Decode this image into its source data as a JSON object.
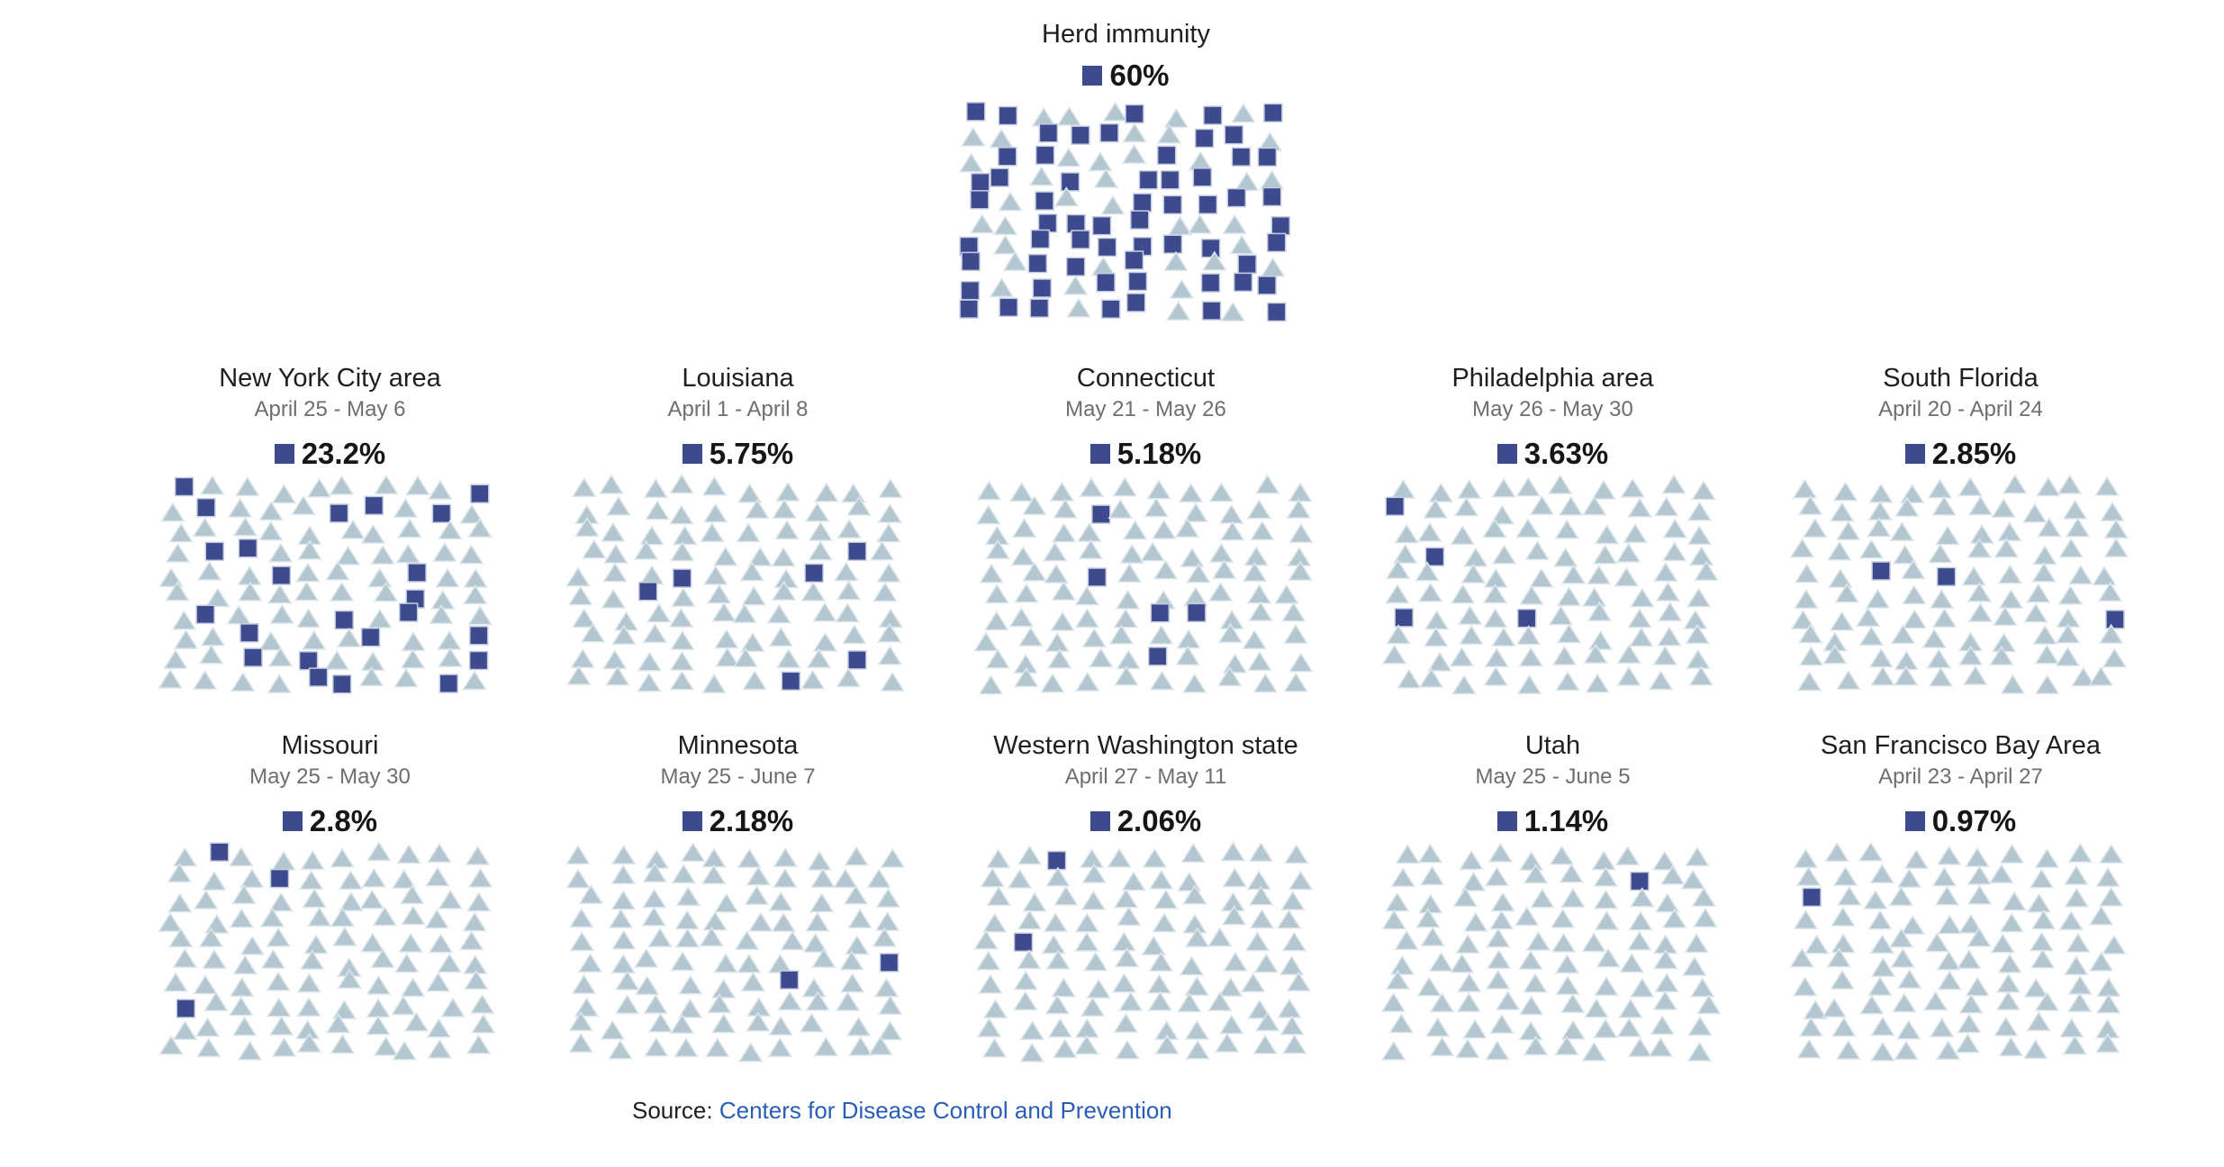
{
  "colors": {
    "square_fill": "#3e4a8e",
    "square_stroke": "#c7cde0",
    "triangle_fill": "#b4c6cf",
    "triangle_stroke": "#dde7ec",
    "title_text": "#1f1f1f",
    "subtitle_text": "#6e6e6e",
    "value_text": "#161616",
    "link_blue": "#2a5db5"
  },
  "herd": {
    "title": "Herd immunity",
    "value_label": "60%",
    "value_pct": 60,
    "icons_total": 100,
    "icons_filled": 60
  },
  "regions": [
    {
      "title": "New York City area",
      "date_range": "April 25 - May 6",
      "value_label": "23.2%",
      "value_pct": 23.2,
      "icons_total": 100,
      "icons_filled": 23,
      "square_cells": [
        0,
        9,
        11,
        15,
        16,
        18,
        31,
        32,
        43,
        47,
        57,
        61,
        65,
        67,
        72,
        76,
        79,
        82,
        84,
        89,
        94,
        95,
        98
      ]
    },
    {
      "title": "Louisiana",
      "date_range": "April 1 - April 8",
      "value_label": "5.75%",
      "value_pct": 5.75,
      "icons_total": 100,
      "icons_filled": 6,
      "square_cells": [
        38,
        43,
        47,
        52,
        88,
        96
      ]
    },
    {
      "title": "Connecticut",
      "date_range": "May 21 - May 26",
      "value_label": "5.18%",
      "value_pct": 5.18,
      "icons_total": 100,
      "icons_filled": 5,
      "square_cells": [
        13,
        43,
        65,
        66,
        85
      ]
    },
    {
      "title": "Philadelphia area",
      "date_range": "May 26 - May 30",
      "value_label": "3.63%",
      "value_pct": 3.63,
      "icons_total": 100,
      "icons_filled": 4,
      "square_cells": [
        10,
        31,
        60,
        64
      ]
    },
    {
      "title": "South Florida",
      "date_range": "April 20 - April 24",
      "value_label": "2.85%",
      "value_pct": 2.85,
      "icons_total": 100,
      "icons_filled": 3,
      "square_cells": [
        42,
        44,
        69
      ]
    },
    {
      "title": "Missouri",
      "date_range": "May 25 - May 30",
      "value_label": "2.8%",
      "value_pct": 2.8,
      "icons_total": 100,
      "icons_filled": 3,
      "square_cells": [
        1,
        13,
        70
      ]
    },
    {
      "title": "Minnesota",
      "date_range": "May 25 - June 7",
      "value_label": "2.18%",
      "value_pct": 2.18,
      "icons_total": 100,
      "icons_filled": 2,
      "square_cells": [
        59,
        66
      ]
    },
    {
      "title": "Western Washington state",
      "date_range": "April 27 - May 11",
      "value_label": "2.06%",
      "value_pct": 2.06,
      "icons_total": 100,
      "icons_filled": 2,
      "square_cells": [
        2,
        41
      ]
    },
    {
      "title": "Utah",
      "date_range": "May 25 - June 5",
      "value_label": "1.14%",
      "value_pct": 1.14,
      "icons_total": 100,
      "icons_filled": 1,
      "square_cells": [
        17
      ]
    },
    {
      "title": "San Francisco Bay Area",
      "date_range": "April 23 - April 27",
      "value_label": "0.97%",
      "value_pct": 0.97,
      "icons_total": 100,
      "icons_filled": 1,
      "square_cells": [
        20
      ]
    }
  ],
  "source": {
    "label": "Source:",
    "link_text": "Centers for Disease Control and Prevention"
  },
  "chart_data": {
    "type": "scatter",
    "subtype": "icon-array-waffle",
    "icons_per_panel": 100,
    "marker_filled": "dark-square",
    "marker_unfilled": "light-triangle",
    "series": [
      {
        "name": "Herd immunity",
        "date_range": null,
        "value_pct": 60,
        "filled_icons": 60
      },
      {
        "name": "New York City area",
        "date_range": "April 25 - May 6",
        "value_pct": 23.2,
        "filled_icons": 23
      },
      {
        "name": "Louisiana",
        "date_range": "April 1 - April 8",
        "value_pct": 5.75,
        "filled_icons": 6
      },
      {
        "name": "Connecticut",
        "date_range": "May 21 - May 26",
        "value_pct": 5.18,
        "filled_icons": 5
      },
      {
        "name": "Philadelphia area",
        "date_range": "May 26 - May 30",
        "value_pct": 3.63,
        "filled_icons": 4
      },
      {
        "name": "South Florida",
        "date_range": "April 20 - April 24",
        "value_pct": 2.85,
        "filled_icons": 3
      },
      {
        "name": "Missouri",
        "date_range": "May 25 - May 30",
        "value_pct": 2.8,
        "filled_icons": 3
      },
      {
        "name": "Minnesota",
        "date_range": "May 25 - June 7",
        "value_pct": 2.18,
        "filled_icons": 2
      },
      {
        "name": "Western Washington state",
        "date_range": "April 27 - May 11",
        "value_pct": 2.06,
        "filled_icons": 2
      },
      {
        "name": "Utah",
        "date_range": "May 25 - June 5",
        "value_pct": 1.14,
        "filled_icons": 1
      },
      {
        "name": "San Francisco Bay Area",
        "date_range": "April 23 - April 27",
        "value_pct": 0.97,
        "filled_icons": 1
      }
    ],
    "source_text": "Source: Centers for Disease Control and Prevention"
  }
}
